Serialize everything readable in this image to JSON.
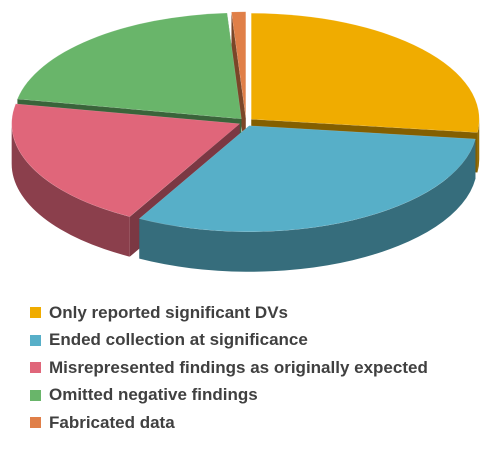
{
  "chart_data": {
    "type": "pie",
    "variant": "3d-exploded",
    "series": [
      {
        "label": "Only reported significant DVs",
        "value": 27,
        "color": "#F0AC00"
      },
      {
        "label": "Ended collection at significance",
        "value": 31,
        "color": "#57AFC8"
      },
      {
        "label": "Misrepresented findings as originally expected",
        "value": 20,
        "color": "#E0667A"
      },
      {
        "label": "Omitted negative findings",
        "value": 21,
        "color": "#69B56A"
      },
      {
        "label": "Fabricated data",
        "value": 1,
        "color": "#E07F48"
      }
    ],
    "legend_position": "bottom"
  }
}
